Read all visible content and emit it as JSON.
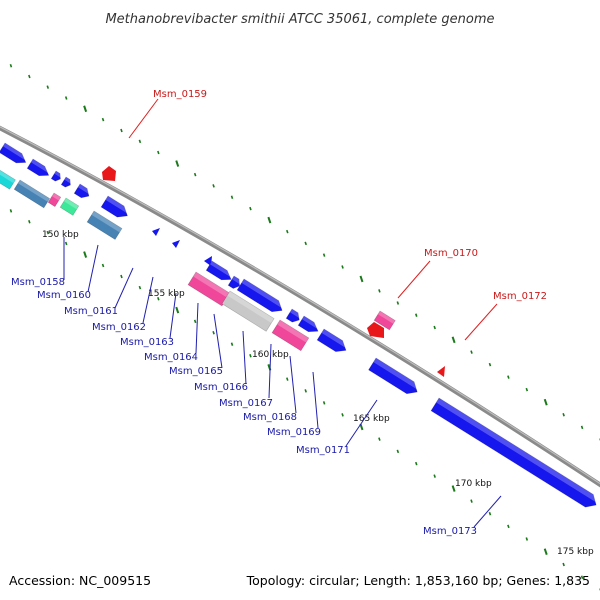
{
  "title": "Methanobrevibacter smithii ATCC 35061, complete genome",
  "footer": {
    "accession": "Accession: NC_009515",
    "summary": "Topology: circular; Length: 1,853,160 bp; Genes: 1,835"
  },
  "colors": {
    "backbone": "#888888",
    "tick": "#1a7a1a",
    "cds": "#1616ee",
    "cds_minus_highlight": "#e8171a",
    "label_blue": "#1a1aa8",
    "label_red": "#c81a1a",
    "cyan": "#1ad8d8",
    "steel": "#4682b4",
    "spring": "#3ee89a",
    "pink": "#f0479a",
    "gray": "#c8c8c8"
  },
  "kbp_labels": [
    "150 kbp",
    "155 kbp",
    "160 kbp",
    "165 kbp",
    "170 kbp",
    "175 kbp"
  ],
  "gene_labels": {
    "top": [
      "Msm_0159",
      "Msm_0170",
      "Msm_0172"
    ],
    "bottom": [
      "Msm_0158",
      "Msm_0160",
      "Msm_0161",
      "Msm_0162",
      "Msm_0163",
      "Msm_0164",
      "Msm_0165",
      "Msm_0166",
      "Msm_0167",
      "Msm_0168",
      "Msm_0169",
      "Msm_0171",
      "Msm_0173"
    ]
  }
}
